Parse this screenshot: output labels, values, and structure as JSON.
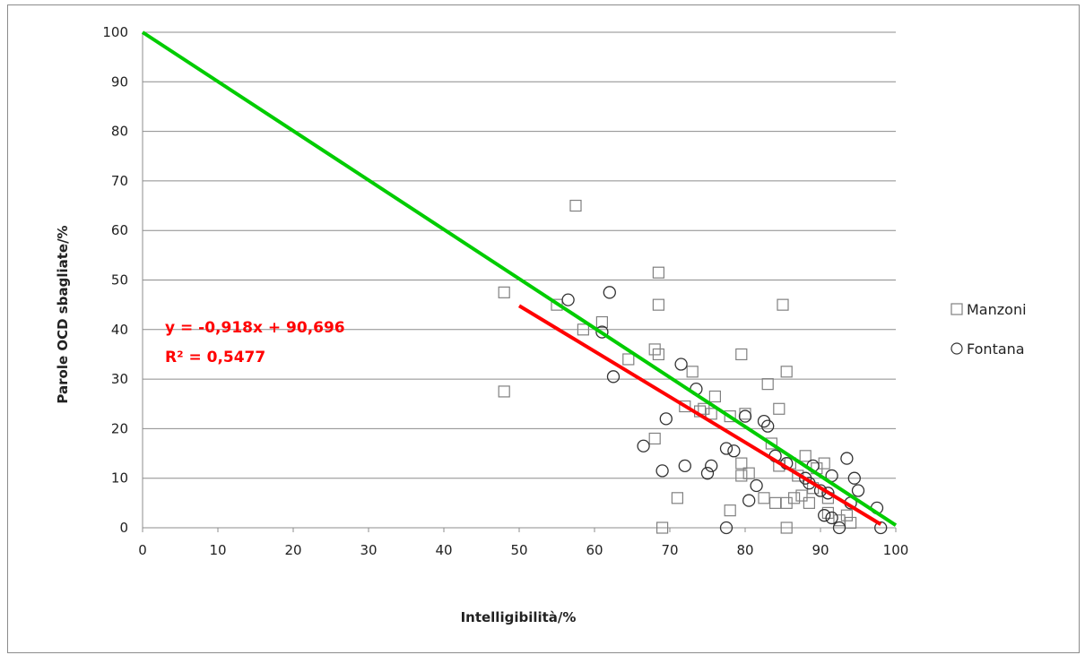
{
  "chart_data": {
    "type": "scatter",
    "title": "",
    "xlabel": "Intelligibilità/%",
    "ylabel": "Parole OCD sbagliate/%",
    "xlim": [
      0,
      100
    ],
    "ylim": [
      0,
      100
    ],
    "x_ticks": [
      "0",
      "10",
      "20",
      "30",
      "40",
      "50",
      "60",
      "70",
      "80",
      "90",
      "100"
    ],
    "y_ticks": [
      "0",
      "10",
      "20",
      "30",
      "40",
      "50",
      "60",
      "70",
      "80",
      "90",
      "100"
    ],
    "grid": "horizontal",
    "legend_position": "right",
    "series": [
      {
        "name": "Manzoni",
        "marker": "square",
        "color": "#808080",
        "points": [
          [
            48,
            47.5
          ],
          [
            48,
            27.5
          ],
          [
            55,
            45
          ],
          [
            57.5,
            65
          ],
          [
            58.5,
            40
          ],
          [
            61,
            41.5
          ],
          [
            64.5,
            34
          ],
          [
            68,
            36
          ],
          [
            68.5,
            51.5
          ],
          [
            68.5,
            45
          ],
          [
            68.5,
            35
          ],
          [
            68,
            18
          ],
          [
            69,
            0
          ],
          [
            71,
            6
          ],
          [
            72,
            24.5
          ],
          [
            73,
            31.5
          ],
          [
            74,
            23.5
          ],
          [
            74.5,
            24
          ],
          [
            75.5,
            23
          ],
          [
            76,
            26.5
          ],
          [
            78,
            22.5
          ],
          [
            78,
            3.5
          ],
          [
            79.5,
            13
          ],
          [
            79.5,
            10.5
          ],
          [
            79.5,
            35
          ],
          [
            80,
            23
          ],
          [
            80.5,
            11
          ],
          [
            82.5,
            6
          ],
          [
            83,
            29
          ],
          [
            83.5,
            17
          ],
          [
            84,
            5
          ],
          [
            84.5,
            12.5
          ],
          [
            84.5,
            24
          ],
          [
            85,
            45
          ],
          [
            85.5,
            31.5
          ],
          [
            85.5,
            5
          ],
          [
            85.5,
            0
          ],
          [
            86,
            13
          ],
          [
            86.5,
            6
          ],
          [
            87,
            10.5
          ],
          [
            87.5,
            6.5
          ],
          [
            88,
            14.5
          ],
          [
            88.5,
            5
          ],
          [
            89,
            8
          ],
          [
            89.5,
            12
          ],
          [
            90.5,
            13
          ],
          [
            91,
            3
          ],
          [
            91,
            6
          ],
          [
            92.5,
            1.5
          ],
          [
            93.5,
            2.5
          ],
          [
            94,
            1
          ]
        ]
      },
      {
        "name": "Fontana",
        "marker": "circle",
        "color": "#333333",
        "points": [
          [
            56.5,
            46
          ],
          [
            61,
            39.5
          ],
          [
            62,
            47.5
          ],
          [
            62.5,
            30.5
          ],
          [
            66.5,
            16.5
          ],
          [
            69,
            11.5
          ],
          [
            69.5,
            22
          ],
          [
            71.5,
            33
          ],
          [
            72,
            12.5
          ],
          [
            73.5,
            28
          ],
          [
            75,
            11
          ],
          [
            75.5,
            12.5
          ],
          [
            77.5,
            16
          ],
          [
            77.5,
            0
          ],
          [
            78.5,
            15.5
          ],
          [
            80,
            22.5
          ],
          [
            80.5,
            5.5
          ],
          [
            81.5,
            8.5
          ],
          [
            82.5,
            21.5
          ],
          [
            83,
            20.5
          ],
          [
            84,
            14.5
          ],
          [
            85.5,
            13
          ],
          [
            88,
            10
          ],
          [
            88.5,
            9
          ],
          [
            89,
            12.5
          ],
          [
            90,
            7.5
          ],
          [
            90.5,
            2.5
          ],
          [
            91,
            7
          ],
          [
            91.5,
            2
          ],
          [
            91.5,
            10.5
          ],
          [
            92.5,
            0
          ],
          [
            93.5,
            14
          ],
          [
            94,
            5
          ],
          [
            94.5,
            10
          ],
          [
            95,
            7.5
          ],
          [
            97.5,
            4
          ],
          [
            98,
            0
          ]
        ]
      }
    ],
    "lines": [
      {
        "color": "#00cc00",
        "from": [
          0,
          100
        ],
        "to": [
          100,
          0.5
        ]
      },
      {
        "color": "#ff0000",
        "from": [
          50,
          44.8
        ],
        "to": [
          98,
          0.7
        ]
      }
    ],
    "annotations": [
      "y = -0,918x + 90,696",
      "R² = 0,5477"
    ]
  }
}
